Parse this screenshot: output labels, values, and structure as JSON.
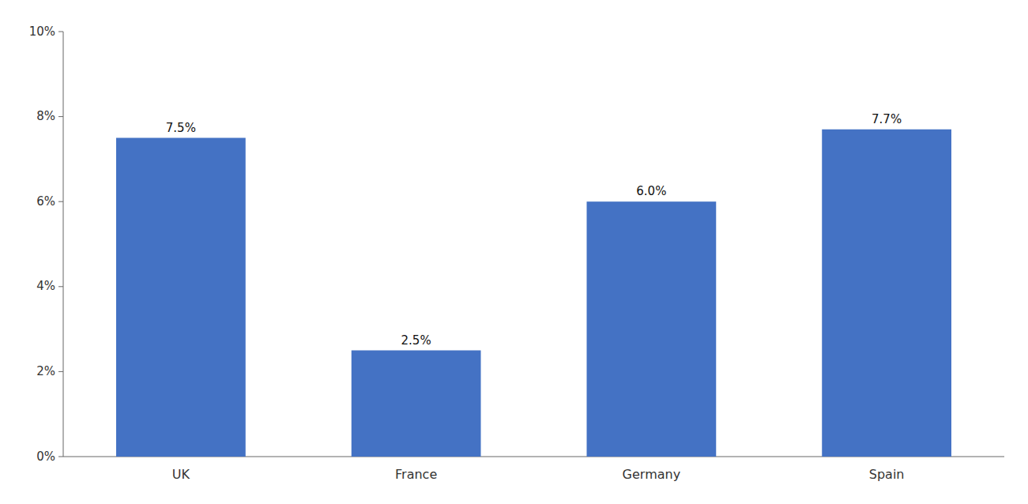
{
  "chart_data": {
    "type": "bar",
    "categories": [
      "UK",
      "France",
      "Germany",
      "Spain"
    ],
    "values": [
      7.5,
      2.5,
      6.0,
      7.7
    ],
    "value_labels": [
      "7.5%",
      "2.5%",
      "6.0%",
      "7.7%"
    ],
    "data_labels": true,
    "color": "#4472C4",
    "ylim": [
      0,
      10
    ],
    "yticks": [
      {
        "value": 0,
        "label": "0%"
      },
      {
        "value": 2,
        "label": "2%"
      },
      {
        "value": 4,
        "label": "4%"
      },
      {
        "value": 6,
        "label": "6%"
      },
      {
        "value": 8,
        "label": "8%"
      },
      {
        "value": 10,
        "label": "10%"
      }
    ],
    "grid": false
  }
}
